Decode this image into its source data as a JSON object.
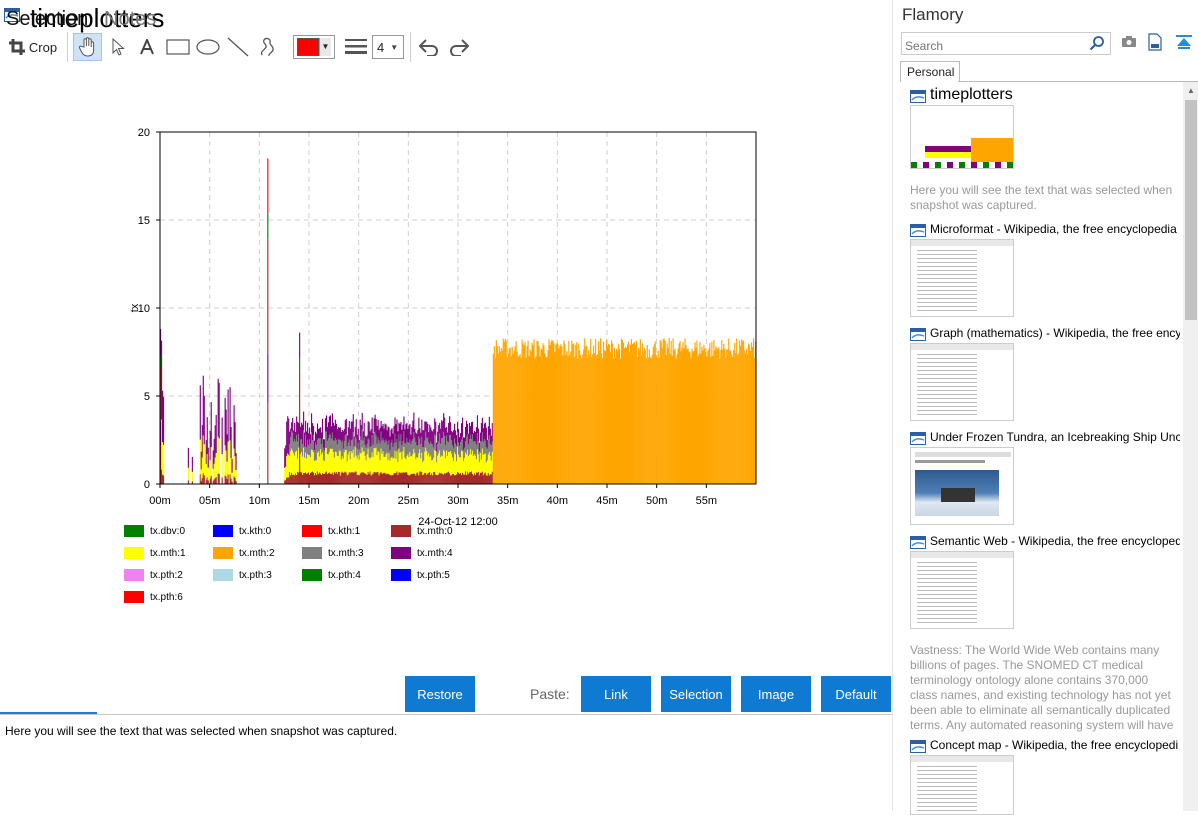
{
  "document": {
    "title": "timeplotters"
  },
  "toolbar": {
    "crop_label": "Crop",
    "line_width": "4",
    "color": "#ff0000"
  },
  "chart_data": {
    "type": "bar",
    "title": "",
    "xlabel": "24-Oct-12 12:00",
    "ylabel": "tx",
    "ylim": [
      0,
      20
    ],
    "xlim": [
      0,
      60
    ],
    "stacked": true,
    "grid": true,
    "legend_position": "bottom",
    "x_ticks": [
      "00m",
      "05m",
      "10m",
      "15m",
      "20m",
      "25m",
      "30m",
      "35m",
      "40m",
      "45m",
      "50m",
      "55m"
    ],
    "y_ticks": [
      0,
      5,
      10,
      15,
      20
    ],
    "series": [
      {
        "name": "tx.dbv:0",
        "color": "#008000"
      },
      {
        "name": "tx.kth:0",
        "color": "#0000ff"
      },
      {
        "name": "tx.kth:1",
        "color": "#ff0000"
      },
      {
        "name": "tx.mth:0",
        "color": "#a52a2a"
      },
      {
        "name": "tx.mth:1",
        "color": "#ffff00"
      },
      {
        "name": "tx.mth:2",
        "color": "#ffa500"
      },
      {
        "name": "tx.mth:3",
        "color": "#808080"
      },
      {
        "name": "tx.mth:4",
        "color": "#800080"
      },
      {
        "name": "tx.pth:2",
        "color": "#ee82ee"
      },
      {
        "name": "tx.pth:3",
        "color": "#add8e6"
      },
      {
        "name": "tx.pth:4",
        "color": "#008000"
      },
      {
        "name": "tx.pth:5",
        "color": "#0000ff"
      },
      {
        "name": "tx.pth:6",
        "color": "#ff0000"
      }
    ],
    "segments": [
      {
        "x": [
          0,
          13
        ],
        "mth0": 0.3,
        "mth1": 1.5,
        "mth4": 2.0,
        "note": "sparse spiky bursts"
      },
      {
        "x": [
          13,
          33.5
        ],
        "mth0": 0.6,
        "mth1": 1.2,
        "mth3": 0.8,
        "mth4": 0.8
      },
      {
        "x": [
          33.5,
          60
        ],
        "mth2": 7.6
      }
    ],
    "peaks": [
      {
        "x": 10.8,
        "value": 18.5
      },
      {
        "x": 14.0,
        "value": 8.6
      },
      {
        "x": 0.0,
        "value": 8.8
      }
    ]
  },
  "bottom": {
    "tab_selection": "Selection",
    "tab_notes": "Notes",
    "restore_label": "Restore",
    "paste_label": "Paste:",
    "link_label": "Link",
    "selection_label": "Selection",
    "image_label": "Image",
    "default_label": "Default",
    "selection_text": "Here you will see the text that was selected when snapshot was captured."
  },
  "sidebar": {
    "title": "Flamory",
    "search_placeholder": "Search",
    "tab_personal": "Personal",
    "snapshots": [
      {
        "title": "timeplotters",
        "desc": "Here you will see the text that was selected when snapshot was captured."
      },
      {
        "title": "Microformat - Wikipedia, the free encyclopedia",
        "desc": ""
      },
      {
        "title": "Graph (mathematics) - Wikipedia, the free ency",
        "desc": ""
      },
      {
        "title": "Under Frozen Tundra, an Icebreaking Ship Unco",
        "desc": ""
      },
      {
        "title": "Semantic Web - Wikipedia, the free encycloped",
        "desc": "Vastness: The World Wide Web contains many billions of pages. The SNOMED CT medical terminology ontology alone contains 370,000 class names, and existing technology has not yet been able to eliminate all semantically duplicated terms. Any automated reasoning system will have to deal with truly huge inputs."
      },
      {
        "title": "Concept map - Wikipedia, the free encyclopedi",
        "desc": ""
      }
    ]
  }
}
